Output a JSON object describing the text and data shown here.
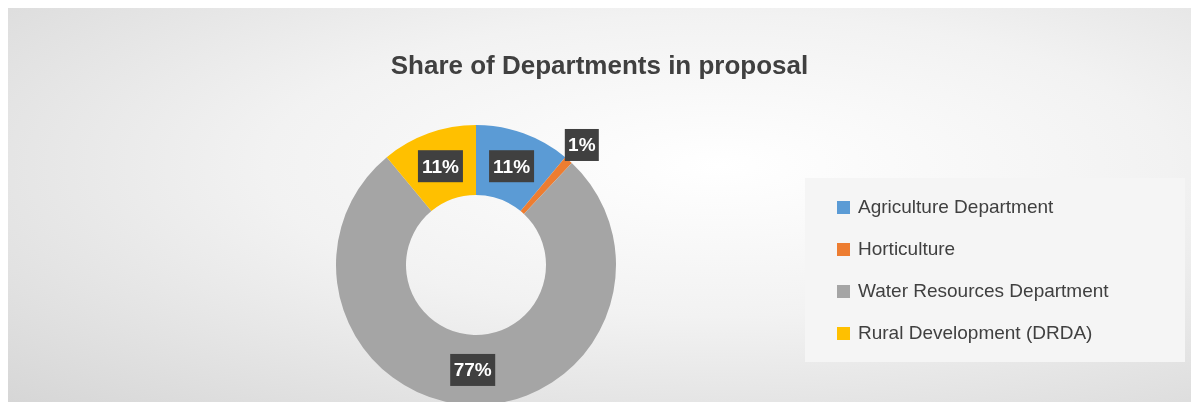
{
  "chart_data": {
    "type": "donut",
    "title": "Share of Departments in proposal",
    "categories": [
      "Agriculture Department",
      "Horticulture",
      "Water Resources Department",
      "Rural Development (DRDA)"
    ],
    "values": [
      11,
      1,
      77,
      11
    ],
    "colors": [
      "#5b9bd5",
      "#ed7d31",
      "#a5a5a5",
      "#ffc000"
    ],
    "value_labels": [
      "11%",
      "1%",
      "77%",
      "11%"
    ],
    "legend": "right"
  }
}
